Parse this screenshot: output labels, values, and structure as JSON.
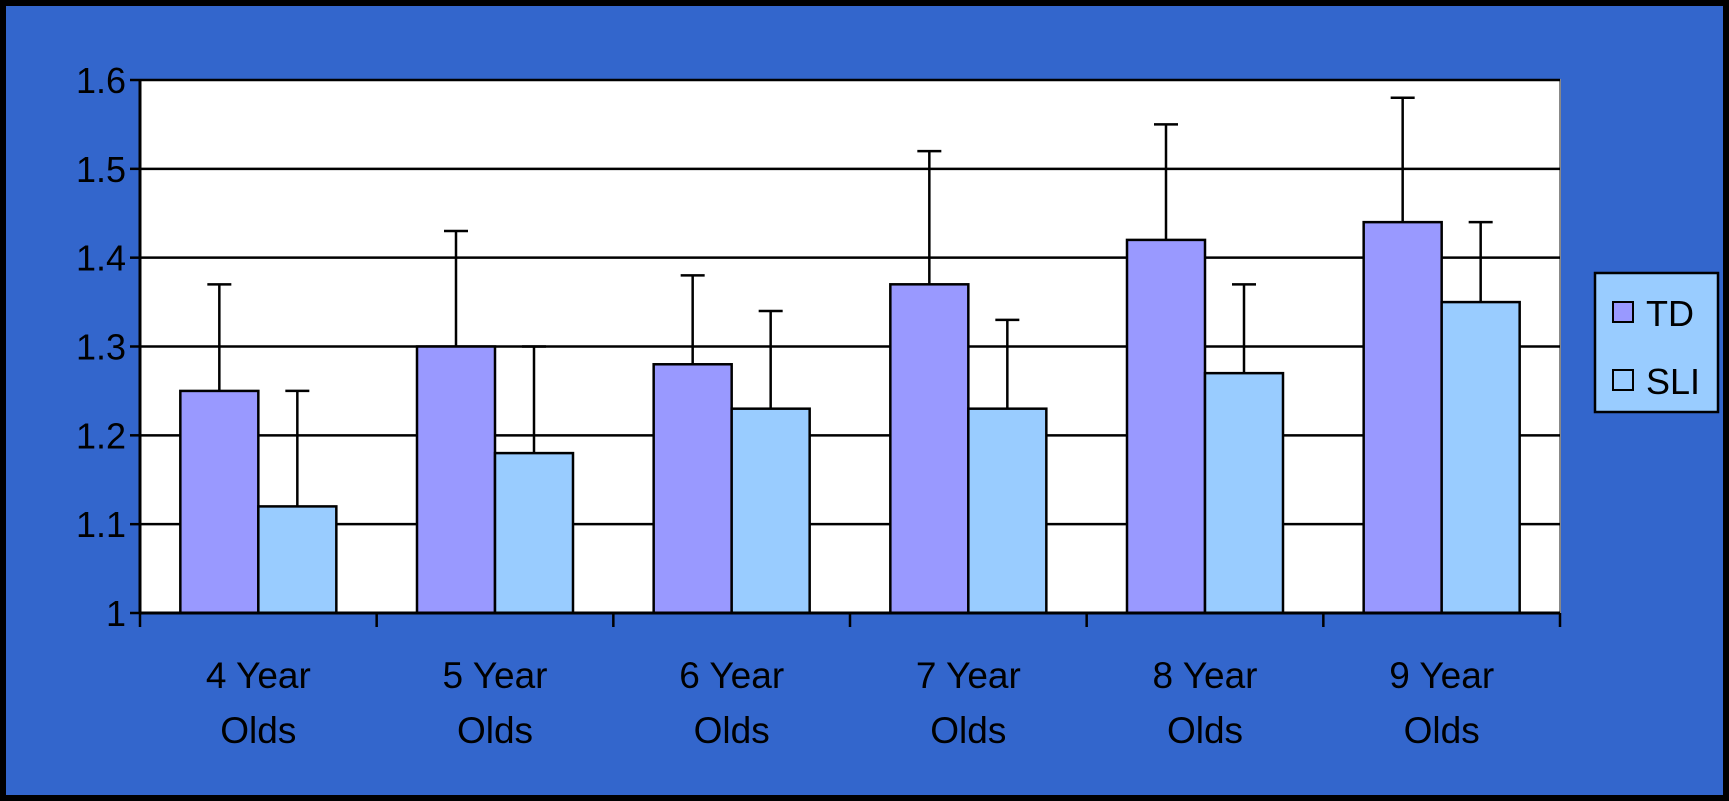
{
  "colors": {
    "background": "#3366CC",
    "border": "#000000",
    "plot_area": "#FFFFFF",
    "td_fill": "#9999FF",
    "sli_fill": "#99CCFF",
    "legend_fill": "#99CCFF"
  },
  "chart_data": {
    "type": "bar",
    "title": "",
    "xlabel": "",
    "ylabel": "",
    "ylim": [
      1,
      1.6
    ],
    "yticks": [
      "1",
      "1.1",
      "1.2",
      "1.3",
      "1.4",
      "1.5",
      "1.6"
    ],
    "grid": true,
    "legend_position": "right",
    "categories": [
      [
        "4 Year",
        "Olds"
      ],
      [
        "5 Year",
        "Olds"
      ],
      [
        "6 Year",
        "Olds"
      ],
      [
        "7 Year",
        "Olds"
      ],
      [
        "8 Year",
        "Olds"
      ],
      [
        "9 Year",
        "Olds"
      ]
    ],
    "series": [
      {
        "name": "TD",
        "color": "#9999FF",
        "values": [
          1.25,
          1.3,
          1.28,
          1.37,
          1.42,
          1.44
        ],
        "error_upper": [
          1.37,
          1.43,
          1.38,
          1.52,
          1.55,
          1.58
        ]
      },
      {
        "name": "SLI",
        "color": "#99CCFF",
        "values": [
          1.12,
          1.18,
          1.23,
          1.23,
          1.27,
          1.35
        ],
        "error_upper": [
          1.25,
          1.3,
          1.34,
          1.33,
          1.37,
          1.44
        ]
      }
    ]
  }
}
